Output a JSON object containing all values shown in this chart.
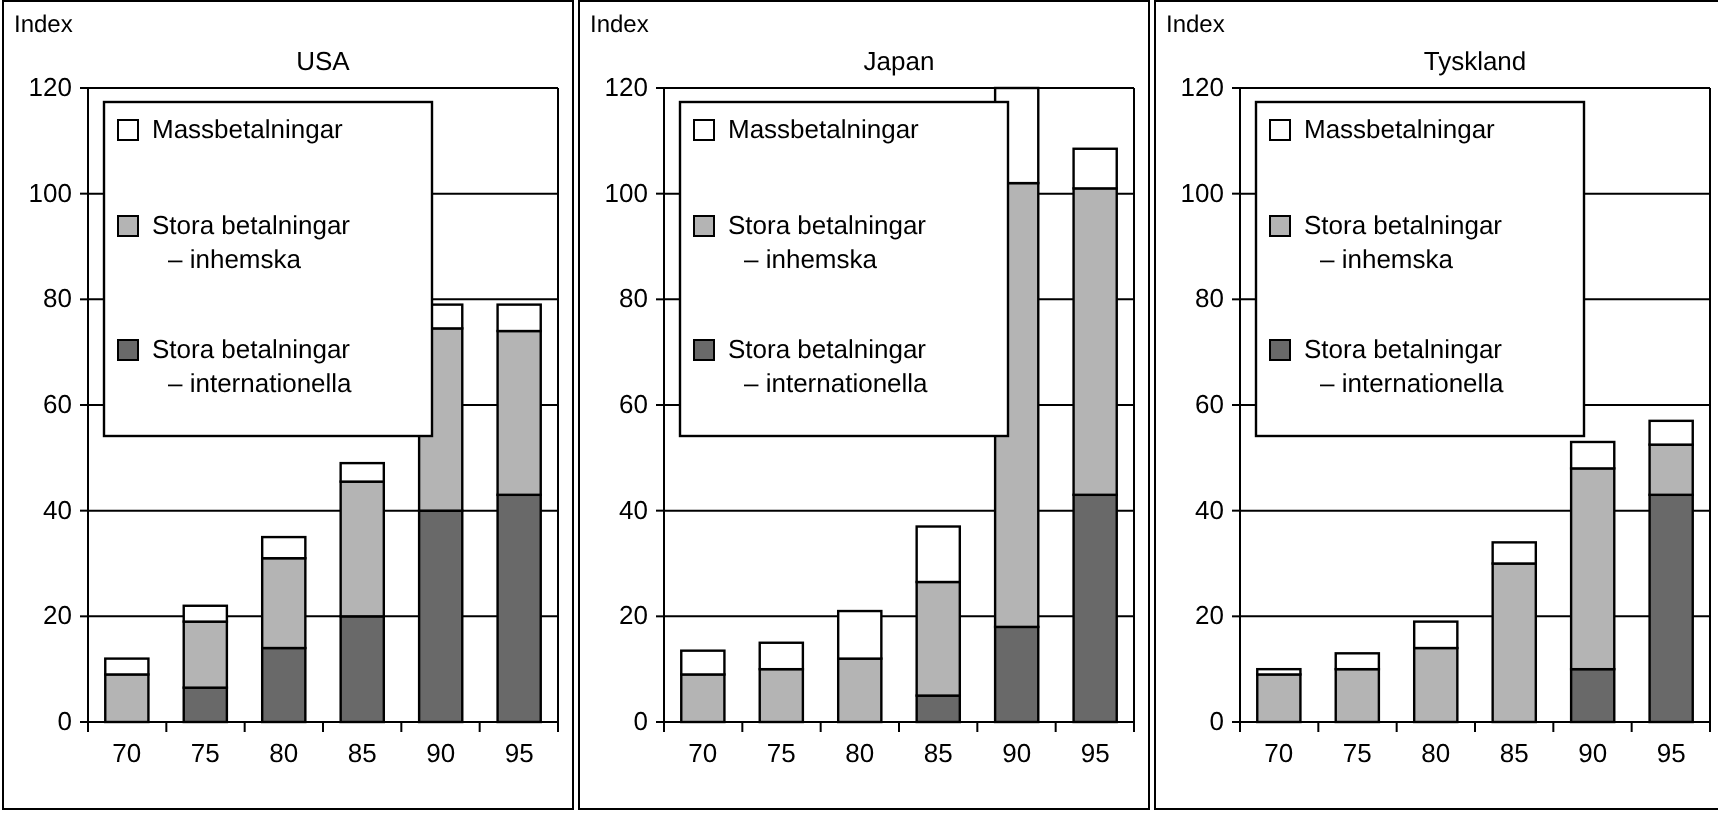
{
  "chart_data": [
    {
      "type": "bar",
      "title": "USA",
      "ylabel": "Index",
      "categories": [
        "70",
        "75",
        "80",
        "85",
        "90",
        "95"
      ],
      "stacked": true,
      "ylim": [
        0,
        120
      ],
      "yticks": [
        0,
        20,
        40,
        60,
        80,
        100,
        120
      ],
      "grid": "y",
      "legend": "top left",
      "series": [
        {
          "name": "Stora betalningar\n– internationella",
          "color": "#696969",
          "values": [
            0,
            6.5,
            14,
            20,
            40,
            43
          ]
        },
        {
          "name": "Stora betalningar\n– inhemska",
          "color": "#b4b4b4",
          "values": [
            9,
            12.5,
            17,
            25.5,
            34.5,
            31
          ]
        },
        {
          "name": "Massbetalningar",
          "color": "#ffffff",
          "values": [
            3,
            3,
            4,
            3.5,
            4.5,
            5
          ]
        }
      ]
    },
    {
      "type": "bar",
      "title": "Japan",
      "ylabel": "Index",
      "categories": [
        "70",
        "75",
        "80",
        "85",
        "90",
        "95"
      ],
      "stacked": true,
      "ylim": [
        0,
        120
      ],
      "yticks": [
        0,
        20,
        40,
        60,
        80,
        100,
        120
      ],
      "grid": "y",
      "legend": "top left",
      "series": [
        {
          "name": "Stora betalningar\n– internationella",
          "color": "#696969",
          "values": [
            0,
            0,
            0,
            5,
            18,
            43
          ]
        },
        {
          "name": "Stora betalningar\n– inhemska",
          "color": "#b4b4b4",
          "values": [
            9,
            10,
            12,
            21.5,
            84,
            58
          ]
        },
        {
          "name": "Massbetalningar",
          "color": "#ffffff",
          "values": [
            4.5,
            5,
            9,
            10.5,
            18,
            7.5
          ]
        }
      ]
    },
    {
      "type": "bar",
      "title": "Tyskland",
      "ylabel": "Index",
      "categories": [
        "70",
        "75",
        "80",
        "85",
        "90",
        "95"
      ],
      "stacked": true,
      "ylim": [
        0,
        120
      ],
      "yticks": [
        0,
        20,
        40,
        60,
        80,
        100,
        120
      ],
      "grid": "y",
      "legend": "top left",
      "series": [
        {
          "name": "Stora betalningar\n– internationella",
          "color": "#696969",
          "values": [
            0,
            0,
            0,
            0,
            10,
            43
          ]
        },
        {
          "name": "Stora betalningar\n– inhemska",
          "color": "#b4b4b4",
          "values": [
            9,
            10,
            14,
            30,
            38,
            9.5
          ]
        },
        {
          "name": "Massbetalningar",
          "color": "#ffffff",
          "values": [
            1,
            3,
            5,
            4,
            5,
            4.5
          ]
        }
      ]
    }
  ]
}
